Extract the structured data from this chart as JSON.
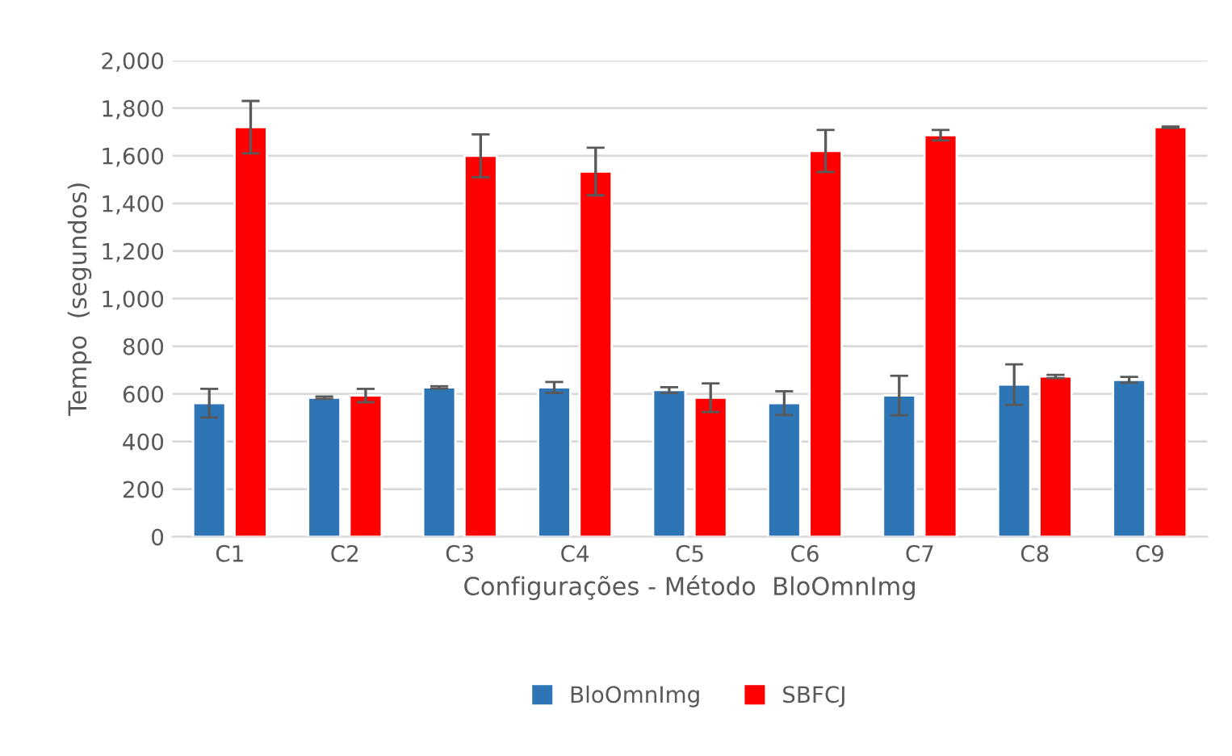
{
  "chart_data": {
    "type": "bar",
    "xlabel": "Configurações - Método  BloOmnImg",
    "ylabel": "Tempo  (segundos)",
    "categories": [
      "C1",
      "C2",
      "C3",
      "C4",
      "C5",
      "C6",
      "C7",
      "C8",
      "C9"
    ],
    "series": [
      {
        "name": "BloOmnImg",
        "color": "#2e75b6",
        "values": [
          561,
          584,
          627,
          627,
          616,
          561,
          593,
          639,
          659
        ],
        "errors": [
          60,
          5,
          5,
          23,
          12,
          50,
          83,
          85,
          12
        ]
      },
      {
        "name": "SBFCJ",
        "color": "#ff0000",
        "values": [
          1720,
          593,
          1600,
          1534,
          584,
          1620,
          1686,
          673,
          1720
        ],
        "errors": [
          110,
          28,
          90,
          100,
          60,
          88,
          22,
          7,
          3
        ]
      }
    ],
    "ylim": [
      0,
      2000
    ],
    "yticks": [
      {
        "value": 0,
        "label": "0"
      },
      {
        "value": 200,
        "label": "200"
      },
      {
        "value": 400,
        "label": "400"
      },
      {
        "value": 600,
        "label": "600"
      },
      {
        "value": 800,
        "label": "800"
      },
      {
        "value": 1000,
        "label": "1,000"
      },
      {
        "value": 1200,
        "label": "1,200"
      },
      {
        "value": 1400,
        "label": "1,400"
      },
      {
        "value": 1600,
        "label": "1,600"
      },
      {
        "value": 1800,
        "label": "1,800"
      },
      {
        "value": 2000,
        "label": "2,000"
      }
    ],
    "grid": "y",
    "legend": "bottom"
  }
}
